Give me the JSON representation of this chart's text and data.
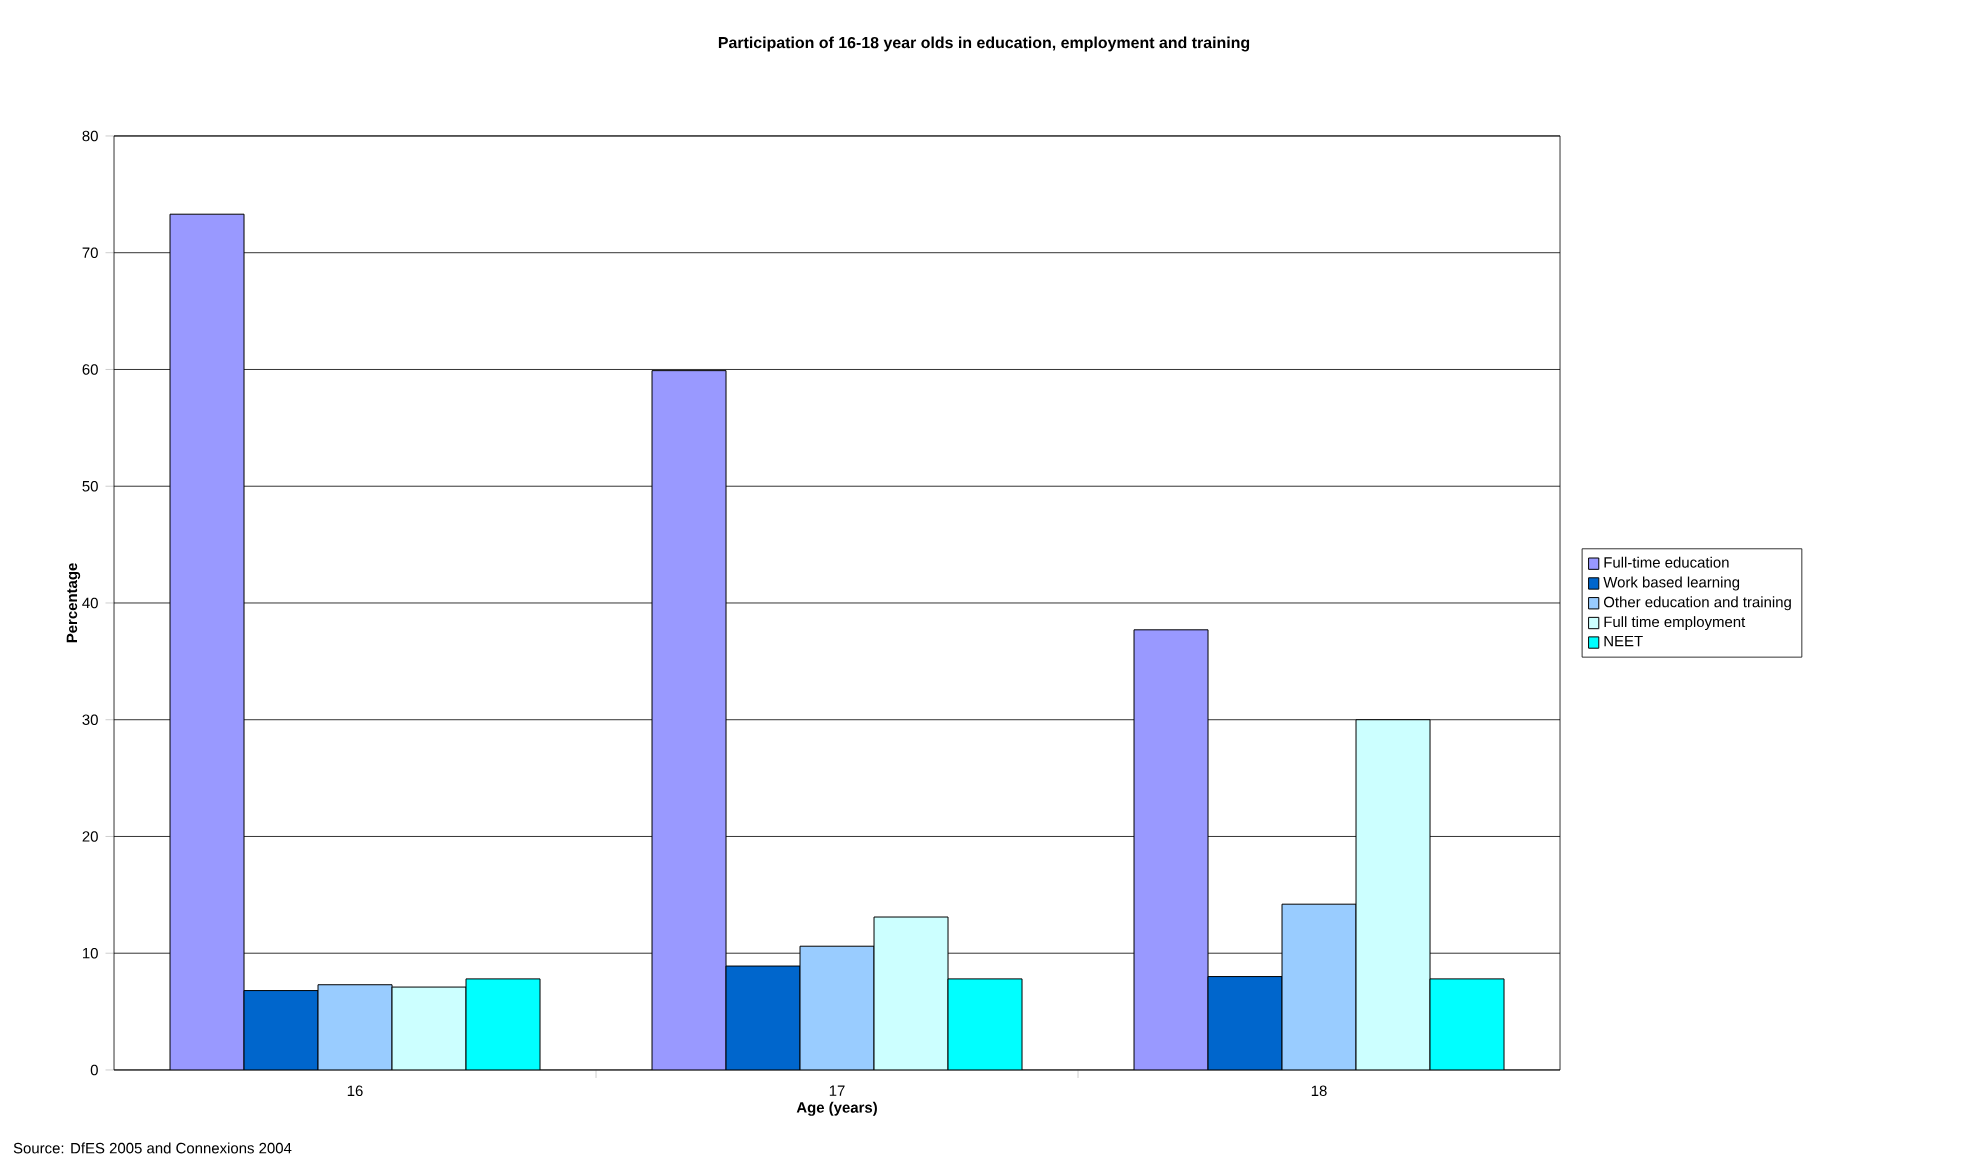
{
  "chart_data": {
    "type": "bar",
    "title": "Participation of 16-18 year olds in education, employment and training",
    "xlabel": "Age (years)",
    "ylabel": "Percentage",
    "categories": [
      "16",
      "17",
      "18"
    ],
    "series": [
      {
        "name": "Full-time education",
        "color": "#9999ff",
        "values": [
          73.3,
          59.9,
          37.7
        ]
      },
      {
        "name": "Work based learning",
        "color": "#0066cc",
        "values": [
          6.8,
          8.9,
          8.0
        ]
      },
      {
        "name": "Other education and training",
        "color": "#99ccff",
        "values": [
          7.3,
          10.6,
          14.2
        ]
      },
      {
        "name": "Full time employment",
        "color": "#ccffff",
        "values": [
          7.1,
          13.1,
          30.0
        ]
      },
      {
        "name": "NEET",
        "color": "#00ffff",
        "values": [
          7.8,
          7.8,
          7.8
        ]
      }
    ],
    "ylim": [
      0,
      80
    ],
    "yticks": [
      0,
      10,
      20,
      30,
      40,
      50,
      60,
      70,
      80
    ],
    "grid": "y",
    "legend": "right",
    "annotations": [
      "Source: DfES 2005 and Connexions 2004"
    ]
  }
}
